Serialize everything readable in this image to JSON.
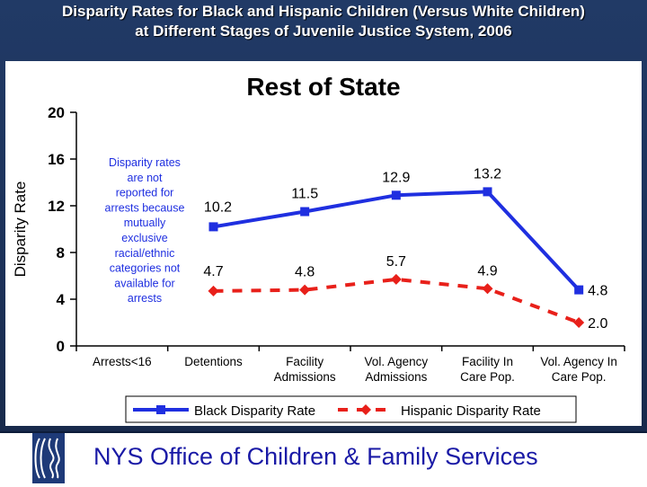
{
  "slide": {
    "title_line1": "Disparity Rates for Black and Hispanic Children (Versus White Children)",
    "title_line2": "at Different Stages of Juvenile Justice System, 2006"
  },
  "chart_data": {
    "type": "line",
    "title": "Rest of State",
    "xlabel": "",
    "ylabel": "Disparity Rate",
    "ylim": [
      0,
      20
    ],
    "yticks": [
      0,
      4,
      8,
      12,
      16,
      20
    ],
    "categories": [
      [
        "Arrests<16"
      ],
      [
        "Detentions"
      ],
      [
        "Facility",
        "Admissions"
      ],
      [
        "Vol. Agency",
        "Admissions"
      ],
      [
        "Facility In",
        "Care Pop."
      ],
      [
        "Vol. Agency In",
        "Care Pop."
      ]
    ],
    "series": [
      {
        "name": "Black Disparity Rate",
        "color": "#1f2fe0",
        "style": "solid",
        "marker": "square",
        "values": [
          null,
          10.2,
          11.5,
          12.9,
          13.2,
          4.8
        ]
      },
      {
        "name": "Hispanic Disparity Rate",
        "color": "#e8201a",
        "style": "dashed",
        "marker": "diamond",
        "values": [
          null,
          4.7,
          4.8,
          5.7,
          4.9,
          2.0
        ]
      }
    ],
    "annotation": [
      "Disparity rates",
      "are not",
      "reported for",
      "arrests because",
      "mutually",
      "exclusive",
      "racial/ethnic",
      "categories not",
      "available for",
      "arrests"
    ],
    "legend_position": "bottom"
  },
  "footer": {
    "org_name": "NYS Office of Children & Family Services"
  }
}
